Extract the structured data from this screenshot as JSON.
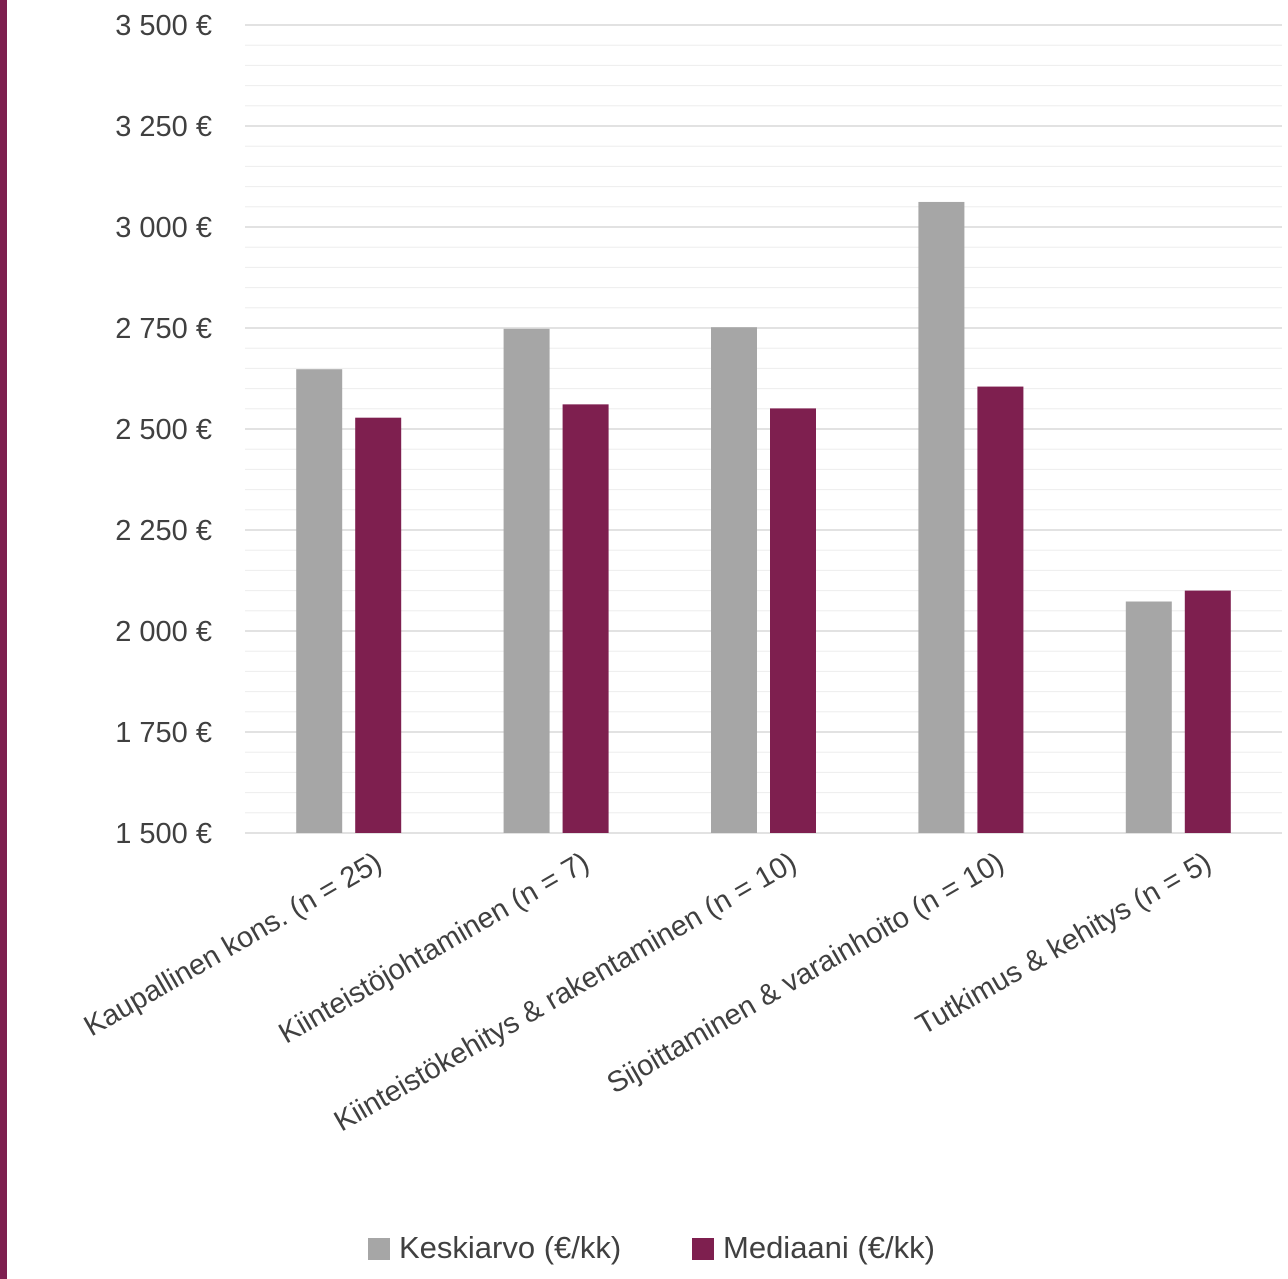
{
  "chart_data": {
    "type": "bar",
    "title": "",
    "xlabel": "",
    "ylabel": "",
    "ylim": [
      1500,
      3500
    ],
    "yticks": [
      1500,
      1750,
      2000,
      2250,
      2500,
      2750,
      3000,
      3250,
      3500
    ],
    "ytick_labels": [
      "1 500 €",
      "1 750 €",
      "2 000 €",
      "2 250 €",
      "2 500 €",
      "2 750 €",
      "3 000 €",
      "3 250 €",
      "3 500 €"
    ],
    "minor_grid_step": 50,
    "grid": true,
    "legend_position": "bottom",
    "categories": [
      "Kaupallinen kons. (n = 25)",
      "Kiinteistöjohtaminen (n = 7)",
      "Kiinteistökehitys & rakentaminen (n = 10)",
      "Sijoittaminen & varainhoito (n = 10)",
      "Tutkimus & kehitys (n = 5)"
    ],
    "series": [
      {
        "name": "Keskiarvo (€/kk)",
        "color": "#a6a6a6",
        "values": [
          2648,
          2748,
          2752,
          3062,
          2073
        ]
      },
      {
        "name": "Mediaani (€/kk)",
        "color": "#7e1f4f",
        "values": [
          2528,
          2561,
          2551,
          2605,
          2100
        ]
      }
    ]
  },
  "colors": {
    "accent": "#7e1f4f",
    "major_grid": "#d9d9d9",
    "minor_grid": "#ededed",
    "text": "#404040"
  }
}
